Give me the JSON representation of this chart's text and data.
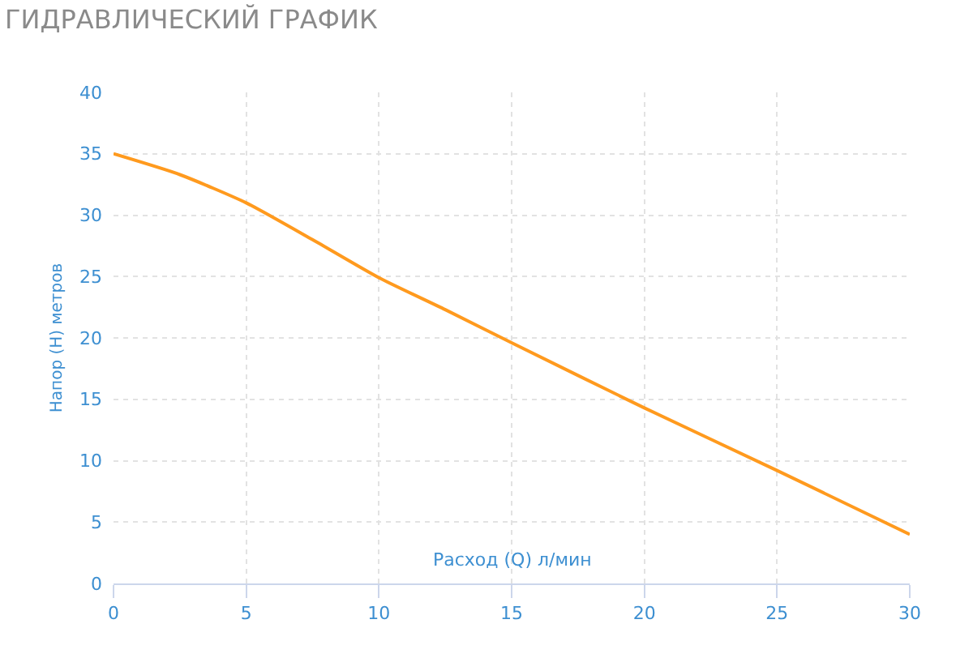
{
  "chart_data": {
    "type": "line",
    "title": "ГИДРАВЛИЧЕСКИЙ ГРАФИК",
    "xlabel": "Расход (Q) л/мин",
    "ylabel": "Напор (Н) метров",
    "x": [
      0,
      2.5,
      5,
      7.5,
      10,
      12.5,
      15,
      20,
      25,
      30
    ],
    "series": [
      {
        "color": "#ff9a1e",
        "values": [
          35,
          33.3,
          31,
          28,
          24.9,
          22.3,
          19.6,
          14.3,
          9.2,
          4
        ]
      }
    ],
    "xlim": [
      0,
      30
    ],
    "xticks": [
      0,
      5,
      10,
      15,
      20,
      25,
      30
    ],
    "ylim": [
      0,
      40
    ],
    "yticks": [
      0,
      5,
      10,
      15,
      20,
      25,
      30,
      35,
      40
    ],
    "grid": true,
    "marker": "none",
    "line_style": "solid"
  }
}
